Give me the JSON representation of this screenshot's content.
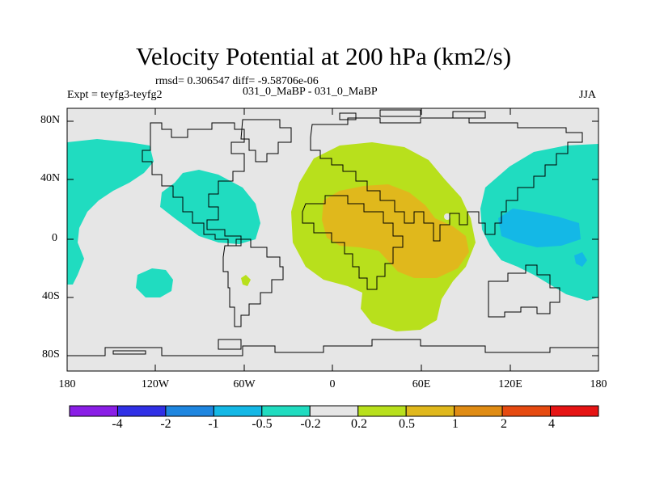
{
  "header": {
    "title": "Velocity Potential at 200 hPa (km2/s)",
    "stats": "rmsd= 0.306547  diff= -9.58706e-06",
    "experiment": "Expt = teyfg3-teyfg2",
    "subtitle": "031_0_MaBP - 031_0_MaBP",
    "season": "JJA"
  },
  "axes": {
    "lat_labels": [
      "80N",
      "40N",
      "0",
      "40S",
      "80S"
    ],
    "lon_labels": [
      "180",
      "120W",
      "60W",
      "0",
      "60E",
      "120E",
      "180"
    ]
  },
  "colorbar": {
    "labels": [
      "-4",
      "-2",
      "-1",
      "-0.5",
      "-0.2",
      "0.2",
      "0.5",
      "1",
      "2",
      "4"
    ],
    "colors": [
      "#8a1ee6",
      "#3030e6",
      "#1e86e0",
      "#14b8e6",
      "#20dcc0",
      "#e6e6e6",
      "#b8e01c",
      "#e0b81c",
      "#e08c14",
      "#e64a10",
      "#e61414"
    ]
  },
  "colors": {
    "neutral": "#e6e6e6",
    "neg_weak": "#20dcc0",
    "neg_mid": "#14b8e6",
    "pos_weak": "#b8e01c",
    "pos_mid": "#e0b81c"
  }
}
